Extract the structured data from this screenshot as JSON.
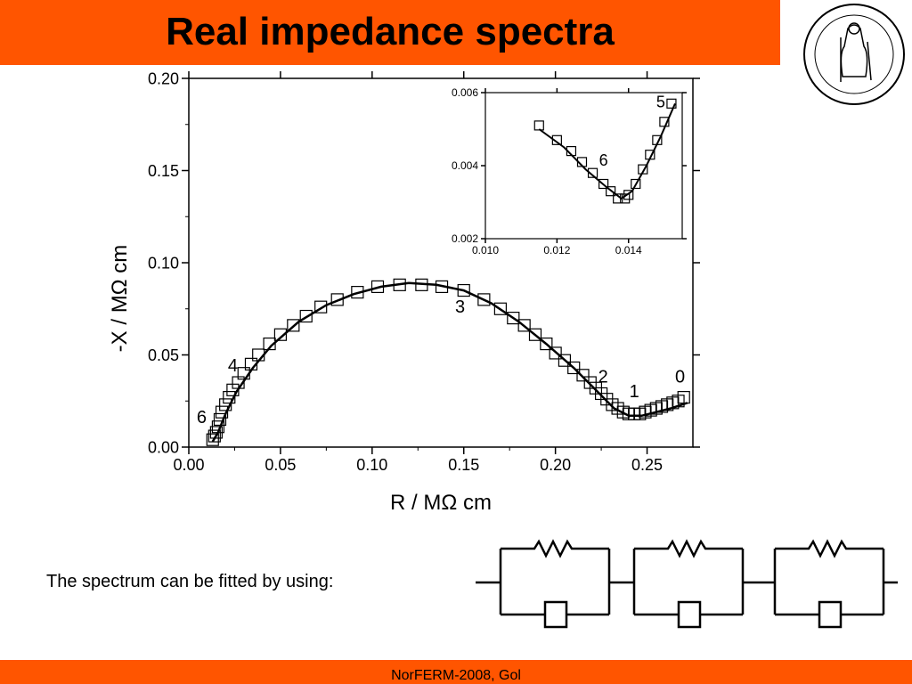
{
  "slide": {
    "title": "Real impedance spectra",
    "fit_text": "The spectrum can be fitted by using:",
    "footer": "NorFERM-2008, Gol",
    "accent_color": "#ff5500"
  },
  "logo": {
    "name": "university-seal",
    "text": "UNIVERSITAS OSLOENSIS MDCCCXI"
  },
  "circuit": {
    "description_icon": "circuit-diagram-icon",
    "elements": [
      "resistor",
      "capacitor",
      "resistor",
      "capacitor",
      "resistor",
      "capacitor"
    ]
  },
  "chart_data": [
    {
      "type": "scatter",
      "xlabel": "R / MΩ cm",
      "ylabel": "-X / MΩ cm",
      "xlim": [
        0.0,
        0.275
      ],
      "ylim": [
        0.0,
        0.2
      ],
      "xticks": [
        "0.00",
        "0.05",
        "0.10",
        "0.15",
        "0.20",
        "0.25"
      ],
      "yticks": [
        "0.00",
        "0.05",
        "0.10",
        "0.15",
        "0.20"
      ],
      "marker": "open-square",
      "grid": false,
      "series": [
        {
          "kind": "measured",
          "points": [
            [
              0.013,
              0.004
            ],
            [
              0.014,
              0.006
            ],
            [
              0.015,
              0.008
            ],
            [
              0.016,
              0.011
            ],
            [
              0.017,
              0.015
            ],
            [
              0.018,
              0.019
            ],
            [
              0.02,
              0.023
            ],
            [
              0.022,
              0.027
            ],
            [
              0.024,
              0.031
            ],
            [
              0.027,
              0.035
            ],
            [
              0.03,
              0.04
            ],
            [
              0.034,
              0.045
            ],
            [
              0.038,
              0.05
            ],
            [
              0.044,
              0.056
            ],
            [
              0.05,
              0.061
            ],
            [
              0.057,
              0.066
            ],
            [
              0.064,
              0.071
            ],
            [
              0.072,
              0.076
            ],
            [
              0.081,
              0.08
            ],
            [
              0.092,
              0.084
            ],
            [
              0.103,
              0.087
            ],
            [
              0.115,
              0.088
            ],
            [
              0.127,
              0.088
            ],
            [
              0.138,
              0.087
            ],
            [
              0.15,
              0.085
            ],
            [
              0.161,
              0.08
            ],
            [
              0.17,
              0.075
            ],
            [
              0.177,
              0.07
            ],
            [
              0.183,
              0.066
            ],
            [
              0.189,
              0.061
            ],
            [
              0.195,
              0.056
            ],
            [
              0.2,
              0.051
            ],
            [
              0.205,
              0.047
            ],
            [
              0.21,
              0.043
            ],
            [
              0.215,
              0.039
            ],
            [
              0.219,
              0.035
            ],
            [
              0.222,
              0.032
            ],
            [
              0.225,
              0.029
            ],
            [
              0.228,
              0.026
            ],
            [
              0.231,
              0.023
            ],
            [
              0.234,
              0.021
            ],
            [
              0.237,
              0.019
            ],
            [
              0.24,
              0.018
            ],
            [
              0.243,
              0.018
            ],
            [
              0.246,
              0.018
            ],
            [
              0.249,
              0.019
            ],
            [
              0.252,
              0.02
            ],
            [
              0.255,
              0.021
            ],
            [
              0.258,
              0.022
            ],
            [
              0.261,
              0.023
            ],
            [
              0.264,
              0.024
            ],
            [
              0.267,
              0.025
            ],
            [
              0.27,
              0.027
            ]
          ]
        },
        {
          "kind": "fit",
          "points": [
            [
              0.013,
              0.003
            ],
            [
              0.016,
              0.008
            ],
            [
              0.02,
              0.018
            ],
            [
              0.026,
              0.03
            ],
            [
              0.035,
              0.043
            ],
            [
              0.045,
              0.055
            ],
            [
              0.06,
              0.068
            ],
            [
              0.075,
              0.077
            ],
            [
              0.09,
              0.083
            ],
            [
              0.105,
              0.087
            ],
            [
              0.12,
              0.089
            ],
            [
              0.135,
              0.088
            ],
            [
              0.15,
              0.085
            ],
            [
              0.165,
              0.078
            ],
            [
              0.18,
              0.068
            ],
            [
              0.195,
              0.056
            ],
            [
              0.21,
              0.043
            ],
            [
              0.222,
              0.031
            ],
            [
              0.232,
              0.021
            ],
            [
              0.24,
              0.017
            ],
            [
              0.247,
              0.017
            ],
            [
              0.255,
              0.019
            ],
            [
              0.263,
              0.021
            ],
            [
              0.272,
              0.024
            ]
          ]
        }
      ],
      "annotations": [
        {
          "text": "0",
          "x": 0.268,
          "y": 0.035
        },
        {
          "text": "1",
          "x": 0.243,
          "y": 0.027
        },
        {
          "text": "2",
          "x": 0.226,
          "y": 0.035
        },
        {
          "text": "3",
          "x": 0.148,
          "y": 0.073
        },
        {
          "text": "4",
          "x": 0.024,
          "y": 0.041
        },
        {
          "text": "6",
          "x": 0.007,
          "y": 0.013
        }
      ]
    },
    {
      "type": "scatter",
      "inset": true,
      "xlim": [
        0.01,
        0.0155
      ],
      "ylim": [
        0.002,
        0.006
      ],
      "xticks": [
        "0.010",
        "0.012",
        "0.014"
      ],
      "yticks": [
        "0.002",
        "0.004",
        "0.006"
      ],
      "marker": "open-square",
      "series": [
        {
          "kind": "measured",
          "points": [
            [
              0.0115,
              0.0051
            ],
            [
              0.012,
              0.0047
            ],
            [
              0.0124,
              0.0044
            ],
            [
              0.0127,
              0.0041
            ],
            [
              0.013,
              0.0038
            ],
            [
              0.0133,
              0.0035
            ],
            [
              0.0135,
              0.0033
            ],
            [
              0.0137,
              0.0031
            ],
            [
              0.0139,
              0.0031
            ],
            [
              0.014,
              0.0032
            ],
            [
              0.0142,
              0.0035
            ],
            [
              0.0144,
              0.0039
            ],
            [
              0.0146,
              0.0043
            ],
            [
              0.0148,
              0.0047
            ],
            [
              0.015,
              0.0052
            ],
            [
              0.0152,
              0.0057
            ]
          ]
        },
        {
          "kind": "fit",
          "points": [
            [
              0.0115,
              0.005
            ],
            [
              0.0122,
              0.0045
            ],
            [
              0.0128,
              0.0039
            ],
            [
              0.0134,
              0.0034
            ],
            [
              0.0138,
              0.0031
            ],
            [
              0.0141,
              0.0033
            ],
            [
              0.0145,
              0.004
            ],
            [
              0.0149,
              0.0048
            ],
            [
              0.0153,
              0.0057
            ]
          ]
        }
      ],
      "annotations": [
        {
          "text": "5",
          "x": 0.0149,
          "y": 0.0056
        },
        {
          "text": "6",
          "x": 0.0133,
          "y": 0.004
        }
      ]
    }
  ]
}
